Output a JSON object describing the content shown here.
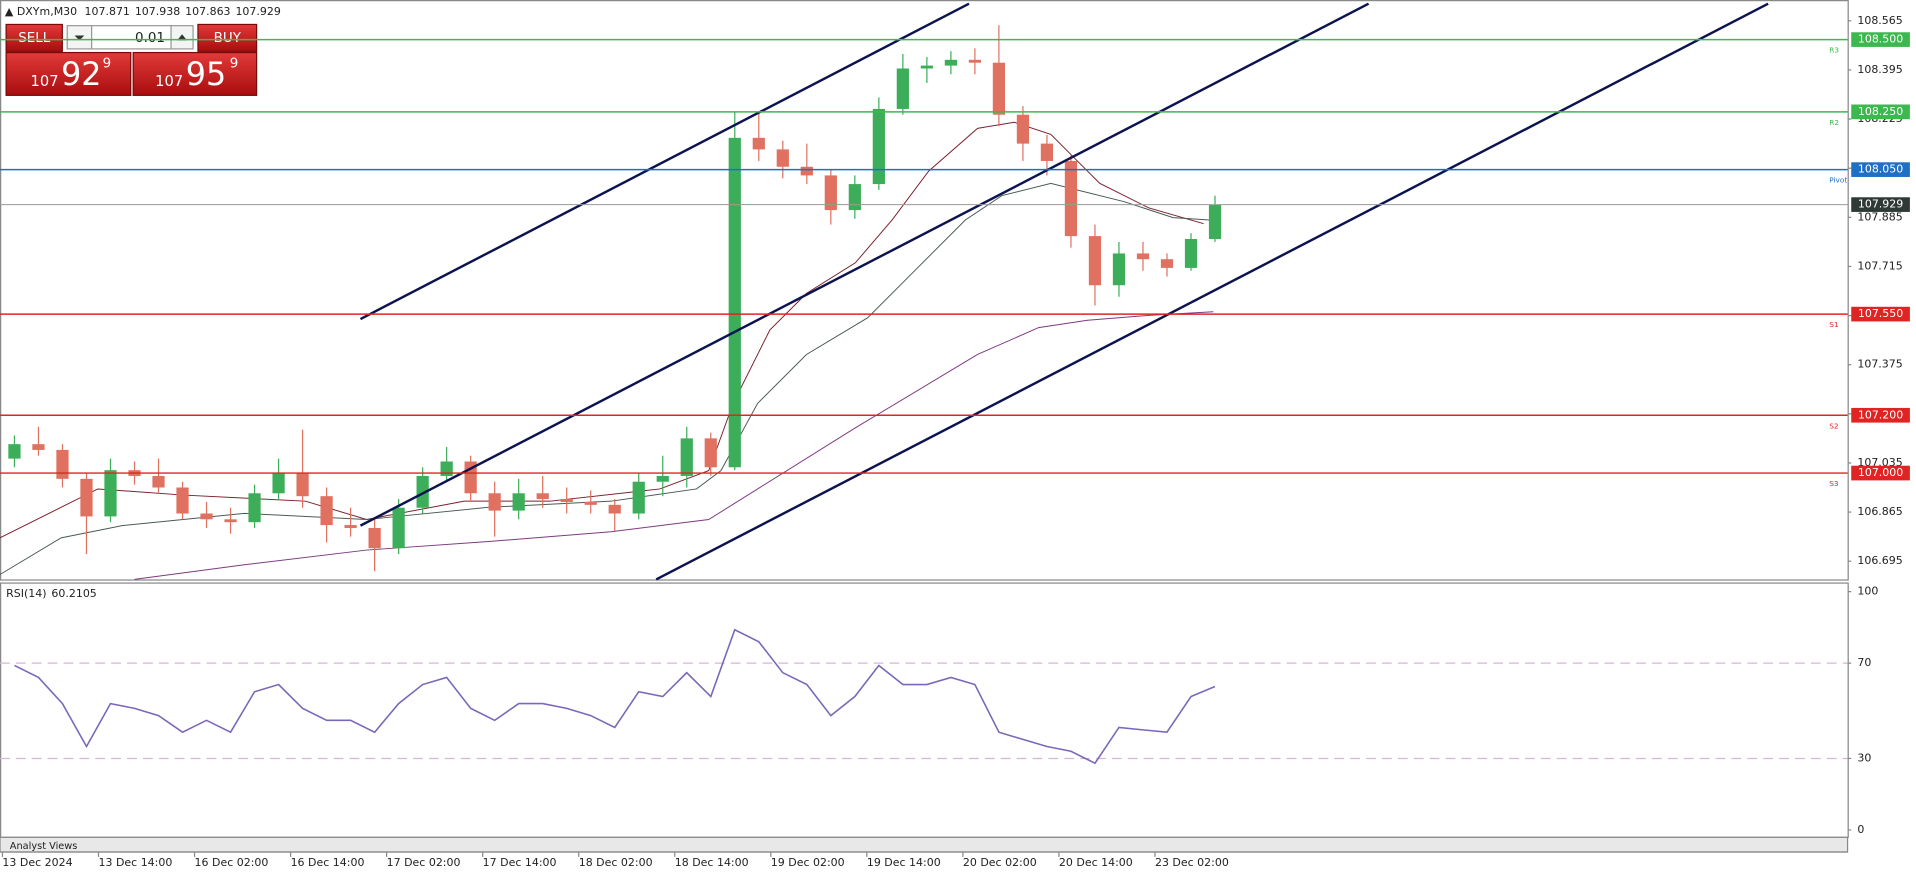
{
  "chart_data": [
    {
      "type": "candlestick",
      "title": "DXYm,M30",
      "header_ohlc": [
        107.871,
        107.938,
        107.863,
        107.929
      ],
      "categories": [
        "13 Dec 2024",
        null,
        null,
        null,
        "13 Dec 14:00",
        null,
        null,
        null,
        "16 Dec 02:00",
        null,
        null,
        null,
        "16 Dec 14:00",
        null,
        null,
        null,
        "17 Dec 02:00",
        null,
        null,
        null,
        "17 Dec 14:00",
        null,
        null,
        null,
        "18 Dec 02:00",
        null,
        null,
        null,
        "18 Dec 14:00",
        null,
        null,
        null,
        "19 Dec 02:00",
        null,
        null,
        null,
        "19 Dec 14:00",
        null,
        null,
        null,
        "20 Dec 02:00",
        null,
        null,
        null,
        "20 Dec 14:00",
        null,
        null,
        null,
        "23 Dec 02:00",
        null,
        null
      ],
      "open": [
        107.05,
        107.1,
        107.08,
        106.98,
        106.85,
        107.01,
        106.99,
        106.95,
        106.86,
        106.84,
        106.83,
        106.93,
        107.0,
        106.92,
        106.82,
        106.81,
        106.74,
        106.88,
        106.99,
        107.04,
        106.93,
        106.87,
        106.93,
        106.91,
        106.9,
        106.89,
        106.86,
        106.97,
        106.99,
        107.12,
        107.02,
        108.16,
        108.12,
        108.06,
        108.03,
        107.91,
        108.0,
        108.26,
        108.4,
        108.41,
        108.43,
        108.42,
        108.24,
        108.14,
        108.08,
        107.82,
        107.65,
        107.76,
        107.74,
        107.71,
        107.81
      ],
      "high": [
        107.13,
        107.16,
        107.1,
        107.0,
        107.05,
        107.04,
        107.05,
        106.97,
        106.9,
        106.88,
        106.96,
        107.05,
        107.15,
        106.95,
        106.88,
        106.84,
        106.91,
        107.02,
        107.09,
        107.06,
        106.97,
        106.98,
        106.99,
        106.95,
        106.94,
        106.91,
        107.0,
        107.06,
        107.16,
        107.14,
        108.25,
        108.25,
        108.15,
        108.14,
        108.05,
        108.03,
        108.3,
        108.45,
        108.44,
        108.46,
        108.47,
        108.55,
        108.27,
        108.17,
        108.1,
        107.86,
        107.8,
        107.8,
        107.76,
        107.83,
        107.96
      ],
      "low": [
        107.02,
        107.06,
        106.95,
        106.72,
        106.83,
        106.96,
        106.93,
        106.84,
        106.81,
        106.79,
        106.81,
        106.91,
        106.88,
        106.76,
        106.78,
        106.66,
        106.72,
        106.86,
        106.97,
        106.9,
        106.78,
        106.84,
        106.88,
        106.86,
        106.86,
        106.8,
        106.84,
        106.92,
        106.95,
        106.99,
        107.01,
        108.08,
        108.02,
        108.0,
        107.86,
        107.88,
        107.98,
        108.24,
        108.35,
        108.38,
        108.38,
        108.2,
        108.08,
        108.03,
        107.78,
        107.58,
        107.61,
        107.7,
        107.68,
        107.7,
        107.8
      ],
      "close": [
        107.1,
        107.08,
        106.98,
        106.85,
        107.01,
        106.99,
        106.95,
        106.86,
        106.84,
        106.83,
        106.93,
        107.0,
        106.92,
        106.82,
        106.81,
        106.74,
        106.88,
        106.99,
        107.04,
        106.93,
        106.87,
        106.93,
        106.91,
        106.9,
        106.89,
        106.86,
        106.97,
        106.99,
        107.12,
        107.02,
        108.16,
        108.12,
        108.06,
        108.03,
        107.91,
        108.0,
        108.26,
        108.4,
        108.41,
        108.43,
        108.42,
        108.24,
        108.14,
        108.08,
        107.82,
        107.65,
        107.76,
        107.74,
        107.71,
        107.81,
        107.929
      ],
      "up_color": "#3cae5a",
      "down_color": "#e0705f",
      "ylim": [
        106.632,
        108.637
      ],
      "yticks": [
        108.565,
        108.395,
        108.225,
        108.055,
        107.885,
        107.715,
        107.545,
        107.375,
        107.205,
        107.035,
        106.865,
        106.695
      ],
      "levels": {
        "names": [
          "R3",
          "R2",
          "Pivot",
          "S1",
          "S2",
          "S3"
        ],
        "values": [
          108.5,
          108.25,
          108.05,
          107.55,
          107.2,
          107.0
        ],
        "value_labels": [
          "108.500",
          "108.250",
          "108.050",
          "107.550",
          "107.200",
          "107.000"
        ],
        "colors": [
          "#3cb94e",
          "#3cb94e",
          "#1f6fc5",
          "#e02424",
          "#e02424",
          "#e02424"
        ]
      },
      "last_price": 107.929,
      "last_price_color": "#9a9a9a"
    },
    {
      "type": "line",
      "title": "RSI(14)",
      "current": 60.2105,
      "color": "#7b68b8",
      "values": [
        69,
        64,
        53,
        35,
        53,
        51,
        48,
        41,
        46,
        41,
        58,
        61,
        51,
        46,
        46,
        41,
        53,
        61,
        64,
        51,
        46,
        53,
        53,
        51,
        48,
        43,
        58,
        56,
        66,
        56,
        84,
        79,
        66,
        61,
        48,
        56,
        69,
        61,
        61,
        64,
        61,
        41,
        38,
        35,
        33,
        28,
        43,
        42,
        41,
        56,
        60.2105
      ],
      "ylim": [
        -3.1,
        103.6
      ],
      "yticks": [
        100,
        70,
        30,
        0
      ],
      "levels": [
        70,
        30
      ]
    }
  ],
  "trade_panel": {
    "sell": "SELL",
    "buy": "BUY",
    "lot": 0.01,
    "bid": {
      "big": "107",
      "main": "92",
      "pip": "9"
    },
    "ask": {
      "big": "107",
      "main": "95",
      "pip": "9"
    }
  },
  "tabs": [
    "Analyst Views"
  ]
}
